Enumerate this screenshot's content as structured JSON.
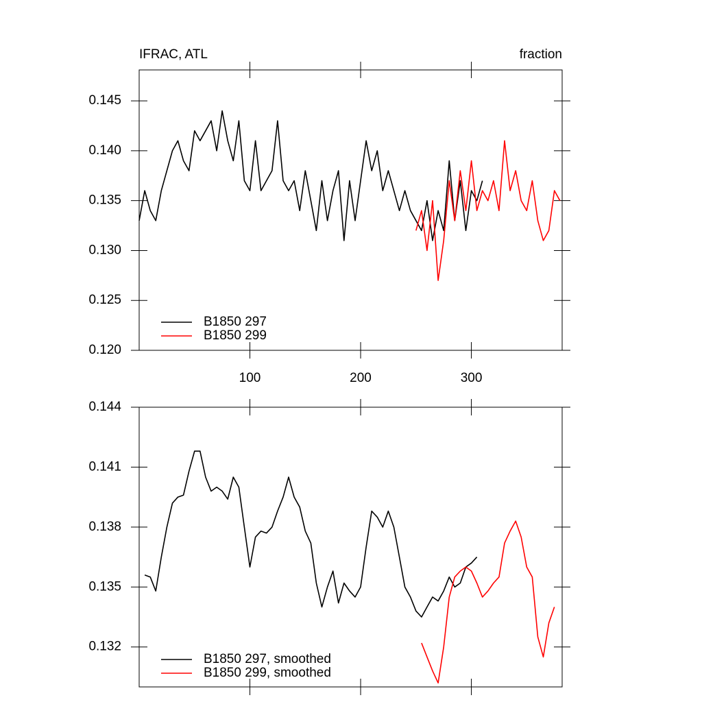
{
  "chart_data": [
    {
      "type": "line",
      "title": "IFRAC, ATL",
      "subtitle": "fraction",
      "x": [
        0,
        5,
        10,
        15,
        20,
        25,
        30,
        35,
        40,
        45,
        50,
        55,
        60,
        65,
        70,
        75,
        80,
        85,
        90,
        95,
        100,
        105,
        110,
        115,
        120,
        125,
        130,
        135,
        140,
        145,
        150,
        155,
        160,
        165,
        170,
        175,
        180,
        185,
        190,
        195,
        200,
        205,
        210,
        215,
        220,
        225,
        230,
        235,
        240,
        245,
        250,
        255,
        260,
        265,
        270,
        275,
        280,
        285,
        290,
        295,
        300,
        305,
        310,
        315,
        320,
        325,
        330,
        335,
        340,
        345,
        350,
        355,
        360,
        365,
        370,
        375,
        380
      ],
      "series": [
        {
          "name": "B1850 297",
          "color": "#000000",
          "values": [
            0.133,
            0.136,
            0.134,
            0.133,
            0.136,
            0.138,
            0.14,
            0.141,
            0.139,
            0.138,
            0.142,
            0.141,
            0.142,
            0.143,
            0.14,
            0.144,
            0.141,
            0.139,
            0.143,
            0.137,
            0.136,
            0.141,
            0.136,
            0.137,
            0.138,
            0.143,
            0.137,
            0.136,
            0.137,
            0.134,
            0.138,
            0.135,
            0.132,
            0.137,
            0.133,
            0.136,
            0.138,
            0.131,
            0.137,
            0.133,
            0.137,
            0.141,
            0.138,
            0.14,
            0.136,
            0.138,
            0.136,
            0.134,
            0.136,
            0.134,
            0.133,
            0.132,
            0.135,
            0.131,
            0.134,
            0.132,
            0.139,
            0.133,
            0.137,
            0.132,
            0.136,
            0.135,
            0.137,
            null,
            null,
            null,
            null,
            null,
            null,
            null,
            null,
            null,
            null,
            null,
            null,
            null,
            null
          ]
        },
        {
          "name": "B1850 299",
          "color": "#ff0000",
          "values": [
            null,
            null,
            null,
            null,
            null,
            null,
            null,
            null,
            null,
            null,
            null,
            null,
            null,
            null,
            null,
            null,
            null,
            null,
            null,
            null,
            null,
            null,
            null,
            null,
            null,
            null,
            null,
            null,
            null,
            null,
            null,
            null,
            null,
            null,
            null,
            null,
            null,
            null,
            null,
            null,
            null,
            null,
            null,
            null,
            null,
            null,
            null,
            null,
            null,
            null,
            0.132,
            0.134,
            0.13,
            0.135,
            0.127,
            0.131,
            0.137,
            0.133,
            0.138,
            0.134,
            0.139,
            0.134,
            0.136,
            0.135,
            0.137,
            0.134,
            0.141,
            0.136,
            0.138,
            0.135,
            0.134,
            0.137,
            0.133,
            0.131,
            0.132,
            0.136,
            0.135
          ]
        }
      ],
      "xlim": [
        0,
        382
      ],
      "xticks": [
        100,
        200,
        300
      ],
      "ylim": [
        0.12,
        0.1481
      ],
      "yticks": [
        {
          "value": 0.12,
          "label": "0.120"
        },
        0.125,
        {
          "value": 0.13,
          "label": "0.130"
        },
        0.135,
        {
          "value": 0.14,
          "label": "0.140"
        },
        0.145
      ]
    },
    {
      "type": "line",
      "x": [
        0,
        5,
        10,
        15,
        20,
        25,
        30,
        35,
        40,
        45,
        50,
        55,
        60,
        65,
        70,
        75,
        80,
        85,
        90,
        95,
        100,
        105,
        110,
        115,
        120,
        125,
        130,
        135,
        140,
        145,
        150,
        155,
        160,
        165,
        170,
        175,
        180,
        185,
        190,
        195,
        200,
        205,
        210,
        215,
        220,
        225,
        230,
        235,
        240,
        245,
        250,
        255,
        260,
        265,
        270,
        275,
        280,
        285,
        290,
        295,
        300,
        305,
        310,
        315,
        320,
        325,
        330,
        335,
        340,
        345,
        350,
        355,
        360,
        365,
        370,
        375,
        380
      ],
      "series": [
        {
          "name": "B1850 297, smoothed",
          "color": "#000000",
          "values": [
            null,
            0.1356,
            0.1355,
            0.1348,
            0.1365,
            0.138,
            0.1392,
            0.1395,
            0.1396,
            0.1408,
            0.1418,
            0.1418,
            0.1405,
            0.1398,
            0.14,
            0.1398,
            0.1394,
            0.1405,
            0.14,
            0.138,
            0.136,
            0.1375,
            0.1378,
            0.1377,
            0.138,
            0.1388,
            0.1395,
            0.1405,
            0.1395,
            0.139,
            0.1378,
            0.1372,
            0.1352,
            0.134,
            0.135,
            0.1358,
            0.1342,
            0.1352,
            0.1348,
            0.1345,
            0.135,
            0.137,
            0.1388,
            0.1385,
            0.138,
            0.1388,
            0.138,
            0.1365,
            0.135,
            0.1345,
            0.1338,
            0.1335,
            0.134,
            0.1345,
            0.1343,
            0.1348,
            0.1355,
            0.135,
            0.1352,
            0.136,
            0.1362,
            0.1365,
            null,
            null,
            null,
            null,
            null,
            null,
            null,
            null,
            null,
            null,
            null,
            null,
            null,
            null,
            null
          ]
        },
        {
          "name": "B1850 299, smoothed",
          "color": "#ff0000",
          "values": [
            null,
            null,
            null,
            null,
            null,
            null,
            null,
            null,
            null,
            null,
            null,
            null,
            null,
            null,
            null,
            null,
            null,
            null,
            null,
            null,
            null,
            null,
            null,
            null,
            null,
            null,
            null,
            null,
            null,
            null,
            null,
            null,
            null,
            null,
            null,
            null,
            null,
            null,
            null,
            null,
            null,
            null,
            null,
            null,
            null,
            null,
            null,
            null,
            null,
            null,
            null,
            0.1322,
            0.1315,
            0.1308,
            0.1302,
            0.132,
            0.1345,
            0.1355,
            0.1358,
            0.136,
            0.1358,
            0.1352,
            0.1345,
            0.1348,
            0.1352,
            0.1355,
            0.1372,
            0.1378,
            0.1383,
            0.1375,
            0.136,
            0.1355,
            0.1325,
            0.1315,
            0.1332,
            0.134,
            null
          ]
        }
      ],
      "xlim": [
        0,
        382
      ],
      "ylim": [
        0.13,
        0.144
      ],
      "yticks": [
        0.132,
        0.135,
        0.138,
        0.141,
        0.144
      ]
    }
  ]
}
